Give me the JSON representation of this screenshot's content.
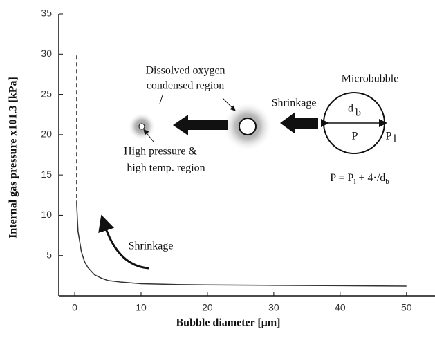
{
  "chart_data": {
    "type": "line",
    "x_label": "Bubble diameter [μm]",
    "y_label": "Internal gas pressure x101.3 [kPa]",
    "xlim": [
      -2.4,
      54.4
    ],
    "xticks": [
      0,
      10,
      20,
      30,
      40,
      50
    ],
    "ylim": [
      0,
      35
    ],
    "yticks": [
      5,
      10,
      15,
      20,
      25,
      30,
      35
    ],
    "series": [
      {
        "color": "#333",
        "x": [
          0.3,
          0.5,
          1,
          1.5,
          2,
          3,
          4,
          5,
          7,
          10,
          15,
          20,
          30,
          40,
          50
        ],
        "values": [
          11.3,
          8,
          5.5,
          4.2,
          3.5,
          2.6,
          2.2,
          1.9,
          1.7,
          1.5,
          1.4,
          1.35,
          1.3,
          1.25,
          1.2
        ]
      },
      {
        "color": "#333",
        "dashed": true,
        "x": [
          0.3,
          0.3
        ],
        "values": [
          11.3,
          30
        ]
      }
    ],
    "annotations": [
      "Dissolved oxygen",
      "condensed region",
      "Microbubble",
      "Shrinkage",
      "d",
      "b",
      "P",
      "P",
      "l",
      "High pressure &",
      "high temp. region",
      "Shrinkage"
    ],
    "formula": [
      "P = P",
      "l",
      " + 4·/d",
      "b"
    ]
  }
}
